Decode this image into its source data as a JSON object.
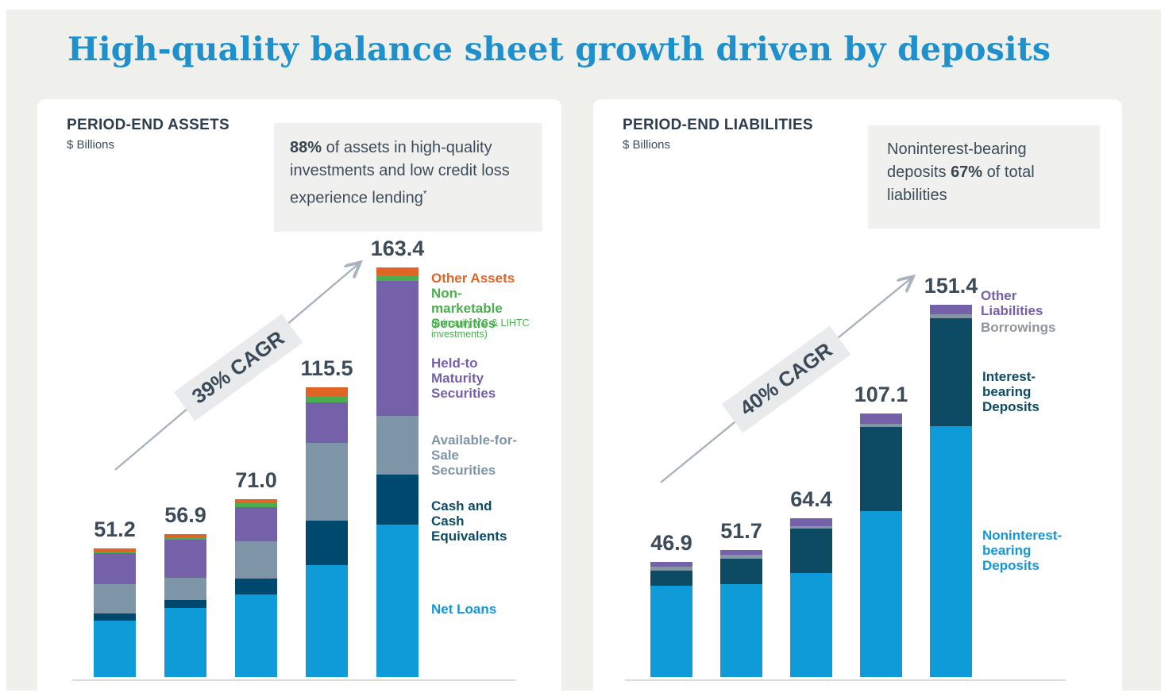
{
  "page": {
    "title": "High-quality balance sheet growth driven by deposits"
  },
  "assets_panel": {
    "heading": "PERIOD-END ASSETS",
    "unit": "$ Billions",
    "callout": {
      "bold": "88%",
      "rest": " of assets in high-quality investments and low credit loss experience lending",
      "sup": "*"
    },
    "cagr_label": "39% CAGR",
    "legend": {
      "other_assets": {
        "label": "Other Assets",
        "color": "#e06426"
      },
      "non_marketable": {
        "label": "Non-marketable Securities",
        "note": "(primarily VC & LIHTC investments)",
        "color": "#4aae4f"
      },
      "htm": {
        "label": "Held-to Maturity Securities",
        "color": "#7561aa"
      },
      "afs": {
        "label": "Available-for-Sale Securities",
        "color": "#7e95a8"
      },
      "cash": {
        "label": "Cash and Cash Equivalents",
        "color": "#0d4a66"
      },
      "net_loans": {
        "label": "Net Loans",
        "color": "#1795d6"
      }
    }
  },
  "liabilities_panel": {
    "heading": "PERIOD-END LIABILITIES",
    "unit": "$ Billions",
    "callout": {
      "pre": "Noninterest-bearing deposits ",
      "bold": "67%",
      "rest": " of total liabilities"
    },
    "cagr_label": "40% CAGR",
    "legend": {
      "other_liabilities": {
        "label": "Other Liabilities",
        "color": "#7561aa"
      },
      "borrowings": {
        "label": "Borrowings",
        "color": "#8e96a0"
      },
      "ib_deposits": {
        "label": "Interest-bearing Deposits",
        "color": "#0d4a66"
      },
      "nib_deposits": {
        "label": "Noninterest-bearing Deposits",
        "color": "#1795d6"
      }
    }
  },
  "chart_data": [
    {
      "id": "assets",
      "type": "bar",
      "subtype": "stacked",
      "title": "PERIOD-END ASSETS",
      "ylabel": "$ Billions",
      "annotation": "39% CAGR",
      "categories": [
        "",
        "",
        "",
        "",
        ""
      ],
      "totals": [
        51.2,
        56.9,
        71.0,
        115.5,
        163.4
      ],
      "total_labels": [
        "51.2",
        "56.9",
        "71.0",
        "115.5",
        "163.4"
      ],
      "series": [
        {
          "name": "Net Loans",
          "color": "#0f9ad8",
          "values": [
            22.4,
            27.6,
            32.9,
            44.5,
            60.9
          ]
        },
        {
          "name": "Cash and Cash Equivalents",
          "color": "#00496e",
          "values": [
            2.9,
            3.2,
            6.4,
            17.7,
            19.8
          ]
        },
        {
          "name": "Available-for-Sale Securities",
          "color": "#7e95a8",
          "values": [
            11.8,
            8.6,
            14.9,
            31.3,
            23.4
          ]
        },
        {
          "name": "Held-to Maturity Securities",
          "color": "#7561aa",
          "values": [
            12.2,
            15.4,
            13.4,
            16.1,
            53.7
          ]
        },
        {
          "name": "Non-marketable Securities (primarily VC & LIHTC investments)",
          "color": "#4aae4f",
          "values": [
            0.7,
            0.9,
            1.6,
            2.4,
            2.2
          ]
        },
        {
          "name": "Other Assets",
          "color": "#e06426",
          "values": [
            1.2,
            1.2,
            1.8,
            3.5,
            3.4
          ]
        }
      ],
      "legend_position": "right",
      "grid": false
    },
    {
      "id": "liabilities",
      "type": "bar",
      "subtype": "stacked",
      "title": "PERIOD-END LIABILITIES",
      "ylabel": "$ Billions",
      "annotation": "40% CAGR",
      "categories": [
        "",
        "",
        "",
        "",
        ""
      ],
      "totals": [
        46.9,
        51.7,
        64.4,
        107.1,
        151.4
      ],
      "total_labels": [
        "46.9",
        "51.7",
        "64.4",
        "107.1",
        "151.4"
      ],
      "series": [
        {
          "name": "Noninterest-bearing Deposits",
          "color": "#0f9ad8",
          "values": [
            37.1,
            37.9,
            42.4,
            67.3,
            102.0
          ]
        },
        {
          "name": "Interest-bearing Deposits",
          "color": "#0d4a63",
          "values": [
            6.2,
            10.3,
            17.9,
            34.2,
            43.8
          ]
        },
        {
          "name": "Borrowings",
          "color": "#8496a6",
          "values": [
            1.5,
            1.4,
            0.9,
            1.3,
            1.5
          ]
        },
        {
          "name": "Other Liabilities",
          "color": "#7561aa",
          "values": [
            2.1,
            2.1,
            3.2,
            4.3,
            4.1
          ]
        }
      ],
      "legend_position": "right",
      "grid": false
    }
  ]
}
